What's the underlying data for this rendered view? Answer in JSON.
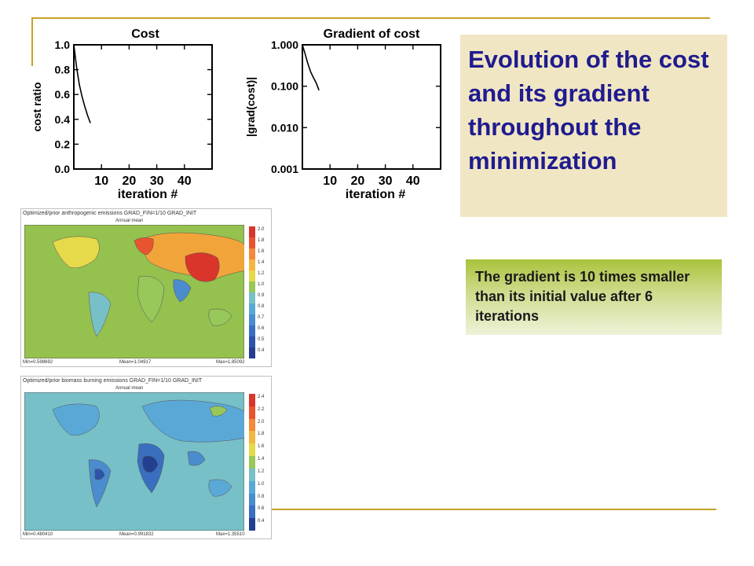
{
  "slide": {
    "title": "Evolution of the cost and its gradient throughout the minimization",
    "note": "The gradient is 10 times smaller than its initial value after 6 iterations"
  },
  "colors": {
    "title_text": "#1f1b8f",
    "title_bg": "#f1e6c3",
    "accent_rule": "#c9a227",
    "note_gradient_top": "#a9c23b"
  },
  "chart_data": [
    {
      "type": "line",
      "title": "Cost",
      "xlabel": "iteration #",
      "ylabel": "cost ratio",
      "xlim": [
        0,
        50
      ],
      "ylim": [
        0,
        1.0
      ],
      "xticks": [
        "10",
        "20",
        "30",
        "40"
      ],
      "yticks": [
        "0.0",
        "0.2",
        "0.4",
        "0.6",
        "0.8",
        "1.0"
      ],
      "series": [
        {
          "x": [
            0,
            1,
            2,
            3,
            4,
            5,
            6
          ],
          "y": [
            1.0,
            0.82,
            0.68,
            0.58,
            0.5,
            0.43,
            0.37
          ]
        }
      ]
    },
    {
      "type": "line",
      "title": "Gradient of cost",
      "xlabel": "iteration #",
      "ylabel": "|grad(cost)|",
      "xlim": [
        0,
        50
      ],
      "ylim": [
        0.001,
        1.0
      ],
      "yscale": "log",
      "xticks": [
        "10",
        "20",
        "30",
        "40"
      ],
      "yticks": [
        "1.000",
        "0.100",
        "0.010",
        "0.001"
      ],
      "series": [
        {
          "x": [
            0,
            1,
            2,
            3,
            4,
            5,
            6
          ],
          "y": [
            1.0,
            0.6,
            0.35,
            0.22,
            0.16,
            0.12,
            0.08
          ]
        }
      ]
    }
  ],
  "maps": [
    {
      "header": "Optimized/prior anthropogenic emissions GRAD_FIN=1/10 GRAD_INIT",
      "subtitle": "Annual mean",
      "footer_min": "Min=0.598692",
      "footer_mean": "Mean=1.04917",
      "footer_max": "Max=1.85092",
      "colorbar": [
        "2.0",
        "1.8",
        "1.6",
        "1.4",
        "1.2",
        "1.0",
        "0.9",
        "0.8",
        "0.7",
        "0.6",
        "0.5",
        "0.4"
      ],
      "colorbar_colors": [
        "#d9352b",
        "#e8542e",
        "#f28a3a",
        "#f3b640",
        "#e6d94a",
        "#98c75a",
        "#78c0c7",
        "#5aa8d6",
        "#4a8ccd",
        "#3a6fbf",
        "#2d54a8",
        "#243f8f"
      ]
    },
    {
      "header": "Optimized/prior biomass burning emissions GRAD_FIN=1/10 GRAD_INIT",
      "subtitle": "Annual mean",
      "footer_min": "Min=0.480410",
      "footer_mean": "Mean=0.991832",
      "footer_max": "Max=1.35510",
      "colorbar": [
        "2.4",
        "2.2",
        "2.0",
        "1.8",
        "1.6",
        "1.4",
        "1.2",
        "1.0",
        "0.8",
        "0.6",
        "0.4"
      ],
      "colorbar_colors": [
        "#d9352b",
        "#e8542e",
        "#f28a3a",
        "#f3b640",
        "#e6d94a",
        "#98c75a",
        "#78c0c7",
        "#5aa8d6",
        "#4a8ccd",
        "#3a6fbf",
        "#243f8f"
      ]
    }
  ]
}
